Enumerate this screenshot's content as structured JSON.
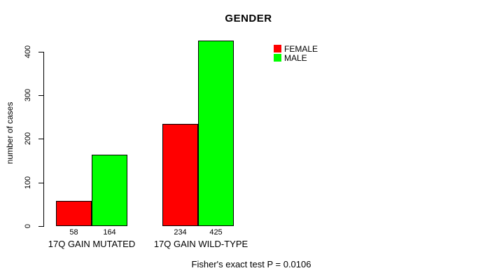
{
  "chart_data": {
    "type": "bar",
    "title": "GENDER",
    "ylabel": "number of cases",
    "xlabel": "",
    "categories": [
      "17Q GAIN MUTATED",
      "17Q GAIN WILD-TYPE"
    ],
    "series": [
      {
        "name": "FEMALE",
        "color": "#ff0000",
        "values": [
          58,
          234
        ]
      },
      {
        "name": "MALE",
        "color": "#00ff00",
        "values": [
          164,
          425
        ]
      }
    ],
    "yticks": [
      0,
      100,
      200,
      300,
      400
    ],
    "ylim": [
      0,
      425
    ],
    "grid": false,
    "legend_position": "top-right",
    "annotation": "Fisher's exact test P = 0.0106"
  }
}
